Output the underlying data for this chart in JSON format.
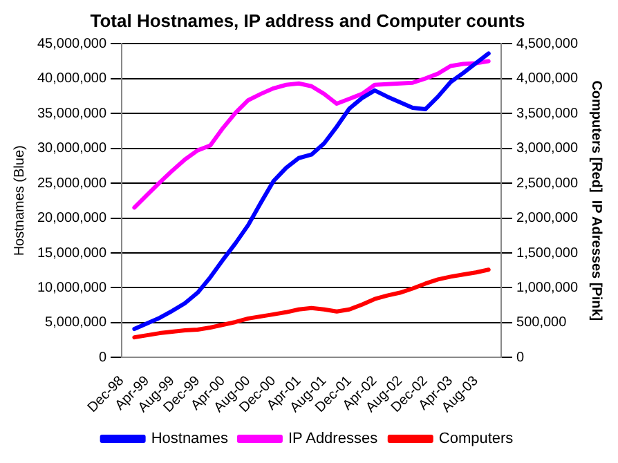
{
  "chart_data": {
    "type": "line",
    "title": "Total Hostnames, IP address and Computer counts",
    "ylabel": "Hostnames (Blue)",
    "y2label": "Computers [Red]  IP Adresses [Pink]",
    "categories": [
      "Dec-98",
      null,
      "Apr-99",
      null,
      "Aug-99",
      null,
      "Dec-99",
      null,
      "Apr-00",
      null,
      "Aug-00",
      null,
      "Dec-00",
      null,
      "Apr-01",
      null,
      "Aug-01",
      null,
      "Dec-01",
      null,
      "Apr-02",
      null,
      "Aug-02",
      null,
      "Dec-02",
      null,
      "Apr-03",
      null,
      "Aug-03",
      null,
      null
    ],
    "series": [
      {
        "name": "Hostnames",
        "color": "#0000ff",
        "values": [
          null,
          4100000,
          4900000,
          5700000,
          6700000,
          7800000,
          9300000,
          11500000,
          14000000,
          16400000,
          19000000,
          22200000,
          25300000,
          27200000,
          28600000,
          29100000,
          30700000,
          33100000,
          35700000,
          37200000,
          38300000,
          37400000,
          36600000,
          35800000,
          35600000,
          37400000,
          39500000,
          40800000,
          42200000,
          43600000,
          null
        ]
      },
      {
        "name": "IP Addresses",
        "color": "#ff00ff",
        "axis": "y2",
        "values": [
          null,
          2150000,
          2330000,
          2510000,
          2680000,
          2840000,
          2970000,
          3040000,
          3290000,
          3510000,
          3690000,
          3780000,
          3860000,
          3910000,
          3930000,
          3890000,
          3780000,
          3640000,
          3710000,
          3780000,
          3910000,
          3920000,
          3930000,
          3940000,
          4000000,
          4070000,
          4180000,
          4210000,
          4220000,
          4250000,
          null
        ]
      },
      {
        "name": "Computers",
        "color": "#ff0000",
        "axis": "y2",
        "values": [
          null,
          290000,
          320000,
          350000,
          370000,
          390000,
          400000,
          430000,
          470000,
          510000,
          560000,
          590000,
          620000,
          650000,
          690000,
          710000,
          690000,
          660000,
          690000,
          760000,
          840000,
          890000,
          930000,
          990000,
          1060000,
          1120000,
          1160000,
          1190000,
          1220000,
          1260000,
          null
        ]
      }
    ],
    "ylim": [
      0,
      45000000
    ],
    "yticks": [
      0,
      {
        "value": 5000000,
        "label": "5,000,000"
      },
      {
        "value": 10000000,
        "label": "10,000,000"
      },
      {
        "value": 15000000,
        "label": "15,000,000"
      },
      {
        "value": 20000000,
        "label": "20,000,000"
      },
      {
        "value": 25000000,
        "label": "25,000,000"
      },
      {
        "value": 30000000,
        "label": "30,000,000"
      },
      {
        "value": 35000000,
        "label": "35,000,000"
      },
      {
        "value": 40000000,
        "label": "40,000,000"
      },
      {
        "value": 45000000,
        "label": "45,000,000"
      }
    ],
    "y2lim": [
      0,
      4500000
    ],
    "y2ticks": [
      0,
      {
        "value": 500000,
        "label": "500,000"
      },
      {
        "value": 1000000,
        "label": "1,000,000"
      },
      {
        "value": 1500000,
        "label": "1,500,000"
      },
      {
        "value": 2000000,
        "label": "2,000,000"
      },
      {
        "value": 2500000,
        "label": "2,500,000"
      },
      {
        "value": 3000000,
        "label": "3,000,000"
      },
      {
        "value": 3500000,
        "label": "3,500,000"
      },
      {
        "value": 4000000,
        "label": "4,000,000"
      },
      {
        "value": 4500000,
        "label": "4,500,000"
      }
    ],
    "grid": "y",
    "legend": "bottom",
    "marker": "none",
    "line_style": "solid"
  }
}
